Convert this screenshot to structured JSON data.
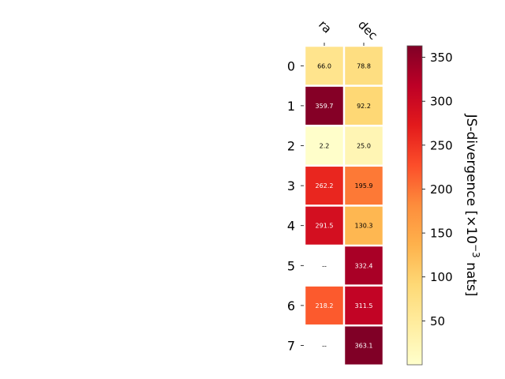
{
  "chart_data": {
    "type": "heatmap",
    "columns": [
      "ra",
      "dec"
    ],
    "rows": [
      "0",
      "1",
      "2",
      "3",
      "4",
      "5",
      "6",
      "7"
    ],
    "values": [
      [
        66.0,
        78.8
      ],
      [
        359.7,
        92.2
      ],
      [
        2.2,
        25.0
      ],
      [
        262.2,
        195.9
      ],
      [
        291.5,
        130.3
      ],
      [
        null,
        332.4
      ],
      [
        218.2,
        311.5
      ],
      [
        null,
        363.1
      ]
    ],
    "cell_labels": [
      [
        "66.0",
        "78.8"
      ],
      [
        "359.7",
        "92.2"
      ],
      [
        "2.2",
        "25.0"
      ],
      [
        "262.2",
        "195.9"
      ],
      [
        "291.5",
        "130.3"
      ],
      [
        "--",
        "332.4"
      ],
      [
        "218.2",
        "311.5"
      ],
      [
        "--",
        "363.1"
      ]
    ],
    "colorbar": {
      "label_main": "JS-divergence [×10",
      "label_exp": "−3",
      "label_unit": " nats]",
      "range": [
        0,
        363.1
      ],
      "ticks": [
        "50",
        "100",
        "150",
        "200",
        "250",
        "300",
        "350"
      ],
      "tick_values": [
        50,
        100,
        150,
        200,
        250,
        300,
        350
      ],
      "colormap": "YlOrRd",
      "colormap_stops": [
        "#ffffcc",
        "#ffeda0",
        "#fed976",
        "#feb24c",
        "#fd8d3c",
        "#fc4e2a",
        "#e31a1c",
        "#bd0026",
        "#800026"
      ]
    }
  }
}
